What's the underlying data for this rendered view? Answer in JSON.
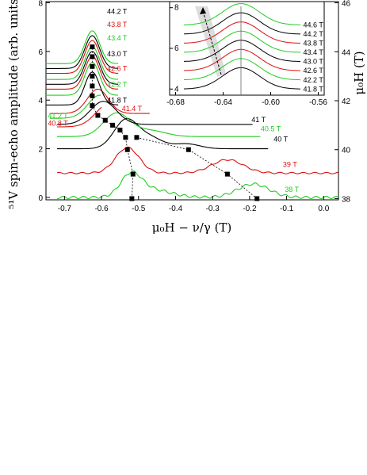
{
  "chart_data": [
    {
      "type": "line",
      "xlabel": "μ₀H − ν/γ (T)",
      "ylabel": "⁵¹V spin-echo amplitude (arb. units)",
      "y2label": "μ₀H (T)",
      "xlim": [
        -0.75,
        0.04
      ],
      "ylim": [
        -0.1,
        8.05
      ],
      "y2lim": [
        37.95,
        46.05
      ],
      "xticks": [
        "-0.7",
        "-0.6",
        "-0.5",
        "-0.4",
        "-0.3",
        "-0.2",
        "-0.1",
        "0.0"
      ],
      "yticks": [
        "0",
        "2",
        "4",
        "6",
        "8"
      ],
      "y2ticks": [
        "38",
        "40",
        "42",
        "44",
        "46"
      ],
      "colors": {
        "green": "#22cc22",
        "black": "#000000",
        "red": "#dd1111"
      },
      "series": [
        {
          "name": "38 T",
          "color": "green",
          "offset": 0.0,
          "label_x": -0.105,
          "label_y": 0.22
        },
        {
          "name": "39 T",
          "color": "red",
          "offset": 1.0,
          "label_x": -0.11,
          "label_y": 1.25
        },
        {
          "name": "40 T",
          "color": "black",
          "offset": 2.0,
          "label_x": -0.135,
          "label_y": 2.3
        },
        {
          "name": "40.5 T",
          "color": "green",
          "offset": 2.5,
          "label_x": -0.17,
          "label_y": 2.72
        },
        {
          "name": "40.8 T",
          "color": "red",
          "offset": 2.9,
          "label_x": -0.745,
          "label_y": 2.95
        },
        {
          "name": "41 T",
          "color": "black",
          "offset": 3.0,
          "label_x": -0.195,
          "label_y": 3.1
        },
        {
          "name": "41.2 T",
          "color": "green",
          "offset": 3.25,
          "label_x": -0.745,
          "label_y": 3.25
        },
        {
          "name": "41.4 T",
          "color": "red",
          "offset": 3.45,
          "label_x": -0.545,
          "label_y": 3.55
        },
        {
          "name": "41.8 T",
          "color": "black",
          "offset": 3.8,
          "label_x": -0.585,
          "label_y": 3.9
        },
        {
          "name": "42.2 T",
          "color": "green",
          "offset": 4.2,
          "label_x": -0.585,
          "label_y": 4.55
        },
        {
          "name": "42.6 T",
          "color": "red",
          "offset": 4.45,
          "label_x": -0.585,
          "label_y": 5.2
        },
        {
          "name": "43.0 T",
          "color": "black",
          "offset": 4.65,
          "label_x": -0.585,
          "label_y": 5.8
        },
        {
          "name": "43.4 T",
          "color": "green",
          "offset": 4.85,
          "label_x": -0.585,
          "label_y": 6.45
        },
        {
          "name": "43.8 T",
          "color": "red",
          "offset": 5.1,
          "label_x": -0.585,
          "label_y": 7.0
        },
        {
          "name": "44.2 T",
          "color": "black",
          "offset": 5.3,
          "label_x": -0.585,
          "label_y": 7.55
        },
        {
          "name": "44.6 T",
          "color": "green",
          "offset": 5.5,
          "label_x": -0.585,
          "label_y": 8.15
        }
      ],
      "markers": [
        {
          "x": -0.518,
          "field": 38.0
        },
        {
          "x": -0.515,
          "field": 39.0
        },
        {
          "x": -0.53,
          "field": 40.0
        },
        {
          "x": -0.535,
          "field": 40.5
        },
        {
          "x": -0.505,
          "field": 40.5
        },
        {
          "x": -0.55,
          "field": 40.8
        },
        {
          "x": -0.57,
          "field": 41.0
        },
        {
          "x": -0.59,
          "field": 41.2
        },
        {
          "x": -0.61,
          "field": 41.4
        },
        {
          "x": -0.625,
          "field": 41.8
        },
        {
          "x": -0.625,
          "field": 42.2
        },
        {
          "x": -0.625,
          "field": 42.6
        },
        {
          "x": -0.625,
          "field": 43.0
        },
        {
          "x": -0.625,
          "field": 43.4
        },
        {
          "x": -0.625,
          "field": 43.8
        },
        {
          "x": -0.625,
          "field": 44.2
        },
        {
          "x": -0.365,
          "field": 40.0
        },
        {
          "x": -0.26,
          "field": 39.0
        },
        {
          "x": -0.18,
          "field": 38.0
        }
      ]
    },
    {
      "type": "line",
      "xlim": [
        -0.685,
        -0.555
      ],
      "ylim": [
        3.7,
        8.3
      ],
      "xticks": [
        "-0.68",
        "-0.64",
        "-0.60",
        "-0.56"
      ],
      "yticks": [
        "4",
        "6",
        "8"
      ],
      "peak_x": -0.625,
      "series": [
        {
          "name": "41.8 T",
          "color": "black",
          "offset": 4.0
        },
        {
          "name": "42.2 T",
          "color": "green",
          "offset": 4.45
        },
        {
          "name": "42.6 T",
          "color": "red",
          "offset": 4.9
        },
        {
          "name": "43.0 T",
          "color": "black",
          "offset": 5.35
        },
        {
          "name": "43.4 T",
          "color": "green",
          "offset": 5.8
        },
        {
          "name": "43.8 T",
          "color": "red",
          "offset": 6.25
        },
        {
          "name": "44.2 T",
          "color": "black",
          "offset": 6.7
        },
        {
          "name": "44.6 T",
          "color": "green",
          "offset": 7.15
        }
      ]
    }
  ]
}
